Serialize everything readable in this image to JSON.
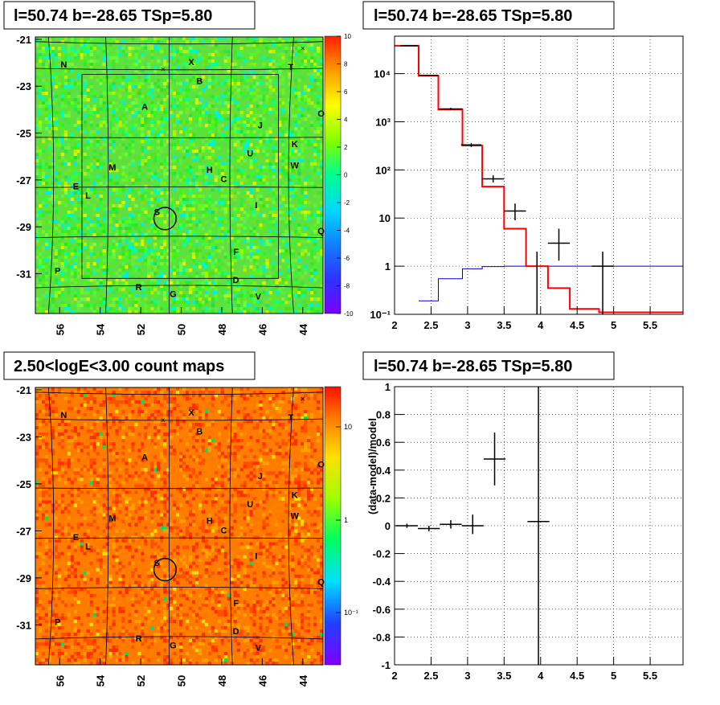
{
  "titles": {
    "map_top": "l=50.74 b=-28.65 TSp=5.80",
    "spectrum": "l=50.74 b=-28.65 TSp=5.80",
    "map_bottom": "2.50<logE<3.00 count maps",
    "residual": "l=50.74 b=-28.65 TSp=5.80"
  },
  "colors": {
    "model": "#ff0000",
    "background": "#0000cc",
    "data": "#000000"
  },
  "map_axes": {
    "x_ticks": [
      "56",
      "54",
      "52",
      "50",
      "48",
      "46",
      "44"
    ],
    "y_ticks": [
      "-21",
      "-23",
      "-25",
      "-27",
      "-29",
      "-31"
    ],
    "x_range": [
      57.2,
      43.0
    ],
    "y_range": [
      -32.7,
      -20.9
    ]
  },
  "source_labels": [
    {
      "name": "N",
      "l": 55.8,
      "b": -22.2
    },
    {
      "name": "X",
      "l": 49.5,
      "b": -22.1
    },
    {
      "name": "T",
      "l": 44.6,
      "b": -22.3
    },
    {
      "name": "B",
      "l": 49.1,
      "b": -22.9
    },
    {
      "name": "A",
      "l": 51.8,
      "b": -24.0
    },
    {
      "name": "O",
      "l": 43.1,
      "b": -24.3
    },
    {
      "name": "J",
      "l": 46.1,
      "b": -24.8
    },
    {
      "name": "K",
      "l": 44.4,
      "b": -25.6
    },
    {
      "name": "U",
      "l": 46.6,
      "b": -26.0
    },
    {
      "name": "W",
      "l": 44.4,
      "b": -26.5
    },
    {
      "name": "M",
      "l": 53.4,
      "b": -26.6
    },
    {
      "name": "H",
      "l": 48.6,
      "b": -26.7
    },
    {
      "name": "C",
      "l": 47.9,
      "b": -27.1
    },
    {
      "name": "E",
      "l": 55.2,
      "b": -27.4
    },
    {
      "name": "L",
      "l": 54.6,
      "b": -27.8
    },
    {
      "name": "I",
      "l": 46.3,
      "b": -28.2
    },
    {
      "name": "S",
      "l": 51.2,
      "b": -28.5
    },
    {
      "name": "Q",
      "l": 43.1,
      "b": -29.3
    },
    {
      "name": "F",
      "l": 47.3,
      "b": -30.2
    },
    {
      "name": "P",
      "l": 56.1,
      "b": -31.0
    },
    {
      "name": "D",
      "l": 47.3,
      "b": -31.4
    },
    {
      "name": "R",
      "l": 52.1,
      "b": -31.7
    },
    {
      "name": "G",
      "l": 50.4,
      "b": -32.0
    },
    {
      "name": "V",
      "l": 46.2,
      "b": -32.1
    }
  ],
  "cross_markers": [
    {
      "l": 50.9,
      "b": -22.4
    },
    {
      "l": 44.0,
      "b": -21.5
    }
  ],
  "roi_circle": {
    "l": 50.8,
    "b": -28.65,
    "r": 0.55
  },
  "colorbar_top": {
    "ticks": [
      "10",
      "8",
      "6",
      "4",
      "2",
      "0",
      "-2",
      "-4",
      "-6",
      "-8",
      "-10"
    ],
    "range": [
      -10,
      10
    ]
  },
  "colorbar_bottom": {
    "ticks": [
      "10",
      "1",
      "10⁻¹"
    ]
  },
  "chart_data": [
    {
      "type": "line",
      "panel": "spectrum",
      "xlim": [
        2.0,
        5.95
      ],
      "ylim": [
        0.1,
        60000
      ],
      "yscale": "log",
      "x_ticks": [
        "2",
        "2.5",
        "3",
        "3.5",
        "4",
        "4.5",
        "5",
        "5.5"
      ],
      "y_ticks": [
        "10⁻¹",
        "1",
        "10",
        "10²",
        "10³",
        "10⁴"
      ],
      "grid": true,
      "model_steps": {
        "edges": [
          2.0,
          2.33,
          2.6,
          2.93,
          3.2,
          3.5,
          3.8,
          4.1,
          4.4,
          4.8,
          5.95
        ],
        "values": [
          38000,
          9000,
          1800,
          320,
          45,
          6.0,
          1.0,
          0.35,
          0.13,
          0.11
        ]
      },
      "background_steps": {
        "edges": [
          2.33,
          2.6,
          2.93,
          3.2,
          3.5,
          3.8,
          4.1,
          5.95
        ],
        "values": [
          0.19,
          0.55,
          0.88,
          0.98,
          1.0,
          1.0,
          1.0
        ]
      },
      "data_points": [
        {
          "x": 2.2,
          "y": 38000,
          "xerr": 0.12,
          "ylo": 37000,
          "yhi": 39000
        },
        {
          "x": 2.47,
          "y": 9200,
          "xerr": 0.13,
          "ylo": 9000,
          "yhi": 9400
        },
        {
          "x": 2.77,
          "y": 1850,
          "xerr": 0.16,
          "ylo": 1750,
          "yhi": 1950
        },
        {
          "x": 3.05,
          "y": 330,
          "xerr": 0.14,
          "ylo": 300,
          "yhi": 360
        },
        {
          "x": 3.35,
          "y": 65,
          "xerr": 0.15,
          "ylo": 55,
          "yhi": 77
        },
        {
          "x": 3.65,
          "y": 14,
          "xerr": 0.15,
          "ylo": 9,
          "yhi": 20
        },
        {
          "x": 3.95,
          "y": 0.1,
          "xerr": 0.0,
          "ylo": 0.1,
          "yhi": 2.0
        },
        {
          "x": 4.25,
          "y": 3.0,
          "xerr": 0.15,
          "ylo": 1.3,
          "yhi": 6.0
        },
        {
          "x": 4.85,
          "y": 1.0,
          "xerr": 0.15,
          "ylo": 0.1,
          "yhi": 2.0
        }
      ]
    },
    {
      "type": "scatter",
      "panel": "residual",
      "xlim": [
        2.0,
        5.95
      ],
      "ylim": [
        -1.0,
        1.0
      ],
      "ylabel": "(data-model)/model",
      "x_ticks": [
        "2",
        "2.5",
        "3",
        "3.5",
        "4",
        "4.5",
        "5",
        "5.5"
      ],
      "y_ticks": [
        "1",
        "0.8",
        "0.6",
        "0.4",
        "0.2",
        "0",
        "-0.2",
        "-0.4",
        "-0.6",
        "-0.8",
        "-1"
      ],
      "grid": true,
      "data_points": [
        {
          "x": 2.17,
          "y": 0.0,
          "xerr": 0.15,
          "ylo": -0.015,
          "yhi": 0.015
        },
        {
          "x": 2.47,
          "y": -0.02,
          "xerr": 0.15,
          "ylo": -0.04,
          "yhi": 0.0
        },
        {
          "x": 2.77,
          "y": 0.01,
          "xerr": 0.15,
          "ylo": -0.02,
          "yhi": 0.04
        },
        {
          "x": 3.07,
          "y": 0.0,
          "xerr": 0.15,
          "ylo": -0.06,
          "yhi": 0.08
        },
        {
          "x": 3.37,
          "y": 0.48,
          "xerr": 0.15,
          "ylo": 0.29,
          "yhi": 0.67
        },
        {
          "x": 3.97,
          "y": 0.03,
          "xerr": 0.15,
          "ylo": -1.0,
          "yhi": 1.0
        }
      ]
    }
  ]
}
